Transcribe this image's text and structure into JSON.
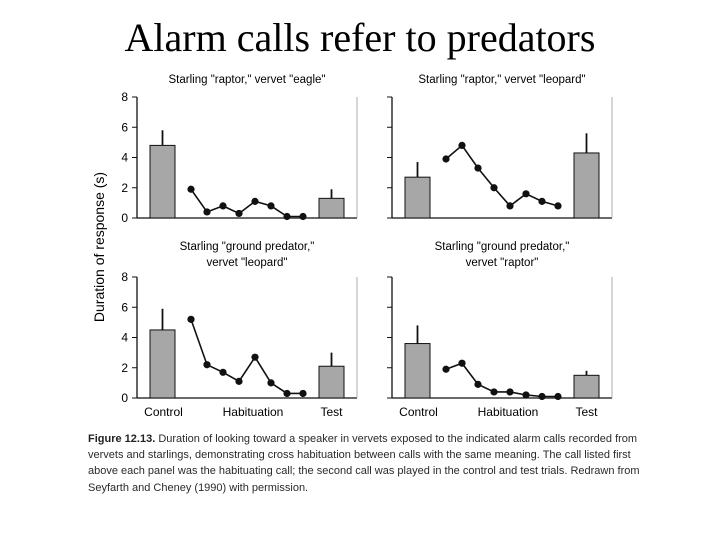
{
  "slide": {
    "title": "Alarm calls refer to predators"
  },
  "caption": {
    "figure_number": "Figure 12.13.",
    "text": "Duration of looking toward a speaker in vervets exposed to the indicated alarm calls recorded from vervets and starlings, demonstrating cross habituation between calls with the same meaning. The call listed first above each panel was the habituating call; the second call was played in the control and test trials. Redrawn from Seyfarth and Cheney (1990) with permission."
  },
  "colors": {
    "bar_fill": "#a7a7a7",
    "ink": "#111111"
  },
  "chart_data": [
    {
      "type": "bar+line",
      "title": [
        "Starling \"raptor,\" vervet \"eagle\""
      ],
      "ylabel": "Duration of response (s)",
      "ylim": [
        0,
        8
      ],
      "yticks": [
        "0",
        "2",
        "4",
        "6",
        "8"
      ],
      "categories": [
        "Control",
        "Habituation",
        "Test"
      ],
      "control": {
        "value": 4.8,
        "error": 1.0
      },
      "habituation": [
        1.9,
        0.4,
        0.8,
        0.3,
        1.1,
        0.8,
        0.1,
        0.1
      ],
      "test": {
        "value": 1.3,
        "error": 0.6
      }
    },
    {
      "type": "bar+line",
      "title": [
        "Starling \"raptor,\" vervet \"leopard\""
      ],
      "ylim": [
        0,
        8
      ],
      "categories": [
        "Control",
        "Habituation",
        "Test"
      ],
      "control": {
        "value": 2.7,
        "error": 1.0
      },
      "habituation": [
        3.9,
        4.8,
        3.3,
        2.0,
        0.8,
        1.6,
        1.1,
        0.8
      ],
      "test": {
        "value": 4.3,
        "error": 1.3
      }
    },
    {
      "type": "bar+line",
      "title": [
        "Starling \"ground predator,\"",
        "vervet \"leopard\""
      ],
      "ylabel": "Duration of response (s)",
      "ylim": [
        0,
        8
      ],
      "yticks": [
        "0",
        "2",
        "4",
        "6",
        "8"
      ],
      "categories": [
        "Control",
        "Habituation",
        "Test"
      ],
      "control": {
        "value": 4.5,
        "error": 1.4
      },
      "habituation": [
        5.2,
        2.2,
        1.7,
        1.1,
        2.7,
        1.0,
        0.3,
        0.3
      ],
      "test": {
        "value": 2.1,
        "error": 0.9
      }
    },
    {
      "type": "bar+line",
      "title": [
        "Starling \"ground predator,\"",
        "vervet \"raptor\""
      ],
      "ylim": [
        0,
        8
      ],
      "categories": [
        "Control",
        "Habituation",
        "Test"
      ],
      "control": {
        "value": 3.6,
        "error": 1.2
      },
      "habituation": [
        1.9,
        2.3,
        0.9,
        0.4,
        0.4,
        0.2,
        0.1,
        0.1
      ],
      "test": {
        "value": 1.5,
        "error": 0.3
      }
    }
  ]
}
